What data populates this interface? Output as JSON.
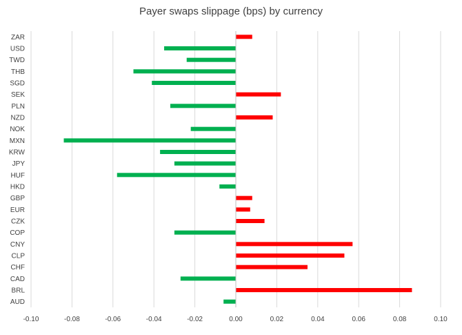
{
  "chart_data": {
    "type": "bar",
    "orientation": "horizontal",
    "title": "Payer swaps slippage (bps) by currency",
    "xlabel": "",
    "ylabel": "",
    "xlim": [
      -0.1,
      0.1
    ],
    "x_ticks": [
      "-0.10",
      "-0.08",
      "-0.06",
      "-0.04",
      "-0.02",
      "0.00",
      "0.02",
      "0.04",
      "0.06",
      "0.08",
      "0.10"
    ],
    "grid": "vertical",
    "legend": "none",
    "positive_color": "#ff0000",
    "negative_color": "#00b050",
    "categories": [
      "ZAR",
      "USD",
      "TWD",
      "THB",
      "SGD",
      "SEK",
      "PLN",
      "NZD",
      "NOK",
      "MXN",
      "KRW",
      "JPY",
      "HUF",
      "HKD",
      "GBP",
      "EUR",
      "CZK",
      "COP",
      "CNY",
      "CLP",
      "CHF",
      "CAD",
      "BRL",
      "AUD"
    ],
    "values": [
      0.008,
      -0.035,
      -0.024,
      -0.05,
      -0.041,
      0.022,
      -0.032,
      0.018,
      -0.022,
      -0.084,
      -0.037,
      -0.03,
      -0.058,
      -0.008,
      0.008,
      0.007,
      0.014,
      -0.03,
      0.057,
      0.053,
      0.035,
      -0.027,
      0.086,
      -0.006
    ]
  }
}
